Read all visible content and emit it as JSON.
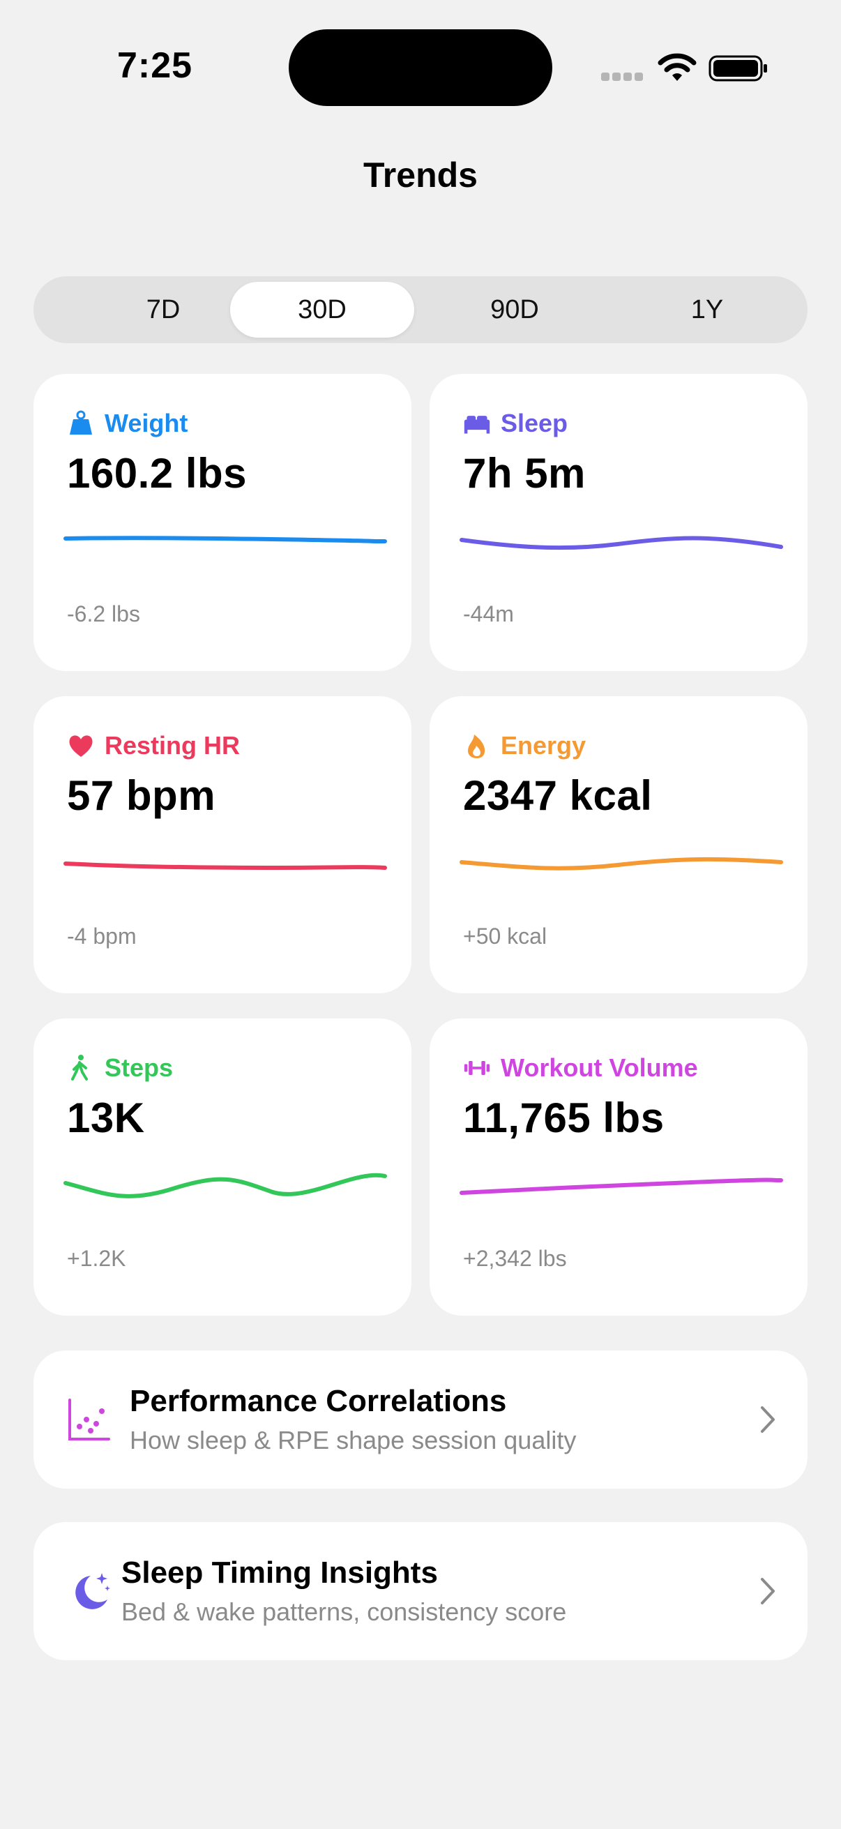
{
  "status_bar": {
    "time": "7:25"
  },
  "header": {
    "title": "Trends"
  },
  "range_selector": {
    "options": [
      "7D",
      "30D",
      "90D",
      "1Y"
    ],
    "selected": "30D"
  },
  "metrics": [
    {
      "key": "weight",
      "label": "Weight",
      "value": "160.2 lbs",
      "delta": "-6.2 lbs",
      "color": "#1a8cf0",
      "icon": "weight-icon"
    },
    {
      "key": "sleep",
      "label": "Sleep",
      "value": "7h 5m",
      "delta": "-44m",
      "color": "#6b5ce7",
      "icon": "bed-icon"
    },
    {
      "key": "resting_hr",
      "label": "Resting HR",
      "value": "57 bpm",
      "delta": "-4 bpm",
      "color": "#ec3a5c",
      "icon": "heart-icon"
    },
    {
      "key": "energy",
      "label": "Energy",
      "value": "2347 kcal",
      "delta": "+50 kcal",
      "color": "#f59a32",
      "icon": "flame-icon"
    },
    {
      "key": "steps",
      "label": "Steps",
      "value": "13K",
      "delta": "+1.2K",
      "color": "#33c659",
      "icon": "walk-icon"
    },
    {
      "key": "workout_volume",
      "label": "Workout Volume",
      "value": "11,765 lbs",
      "delta": "+2,342 lbs",
      "color": "#cf45e0",
      "icon": "dumbbell-icon"
    }
  ],
  "links": [
    {
      "title": "Performance Correlations",
      "subtitle": "How sleep & RPE shape session quality",
      "icon": "scatter-chart-icon",
      "color": "#cf45e0"
    },
    {
      "title": "Sleep Timing Insights",
      "subtitle": "Bed & wake patterns, consistency score",
      "icon": "moon-stars-icon",
      "color": "#6b5ce7"
    }
  ]
}
